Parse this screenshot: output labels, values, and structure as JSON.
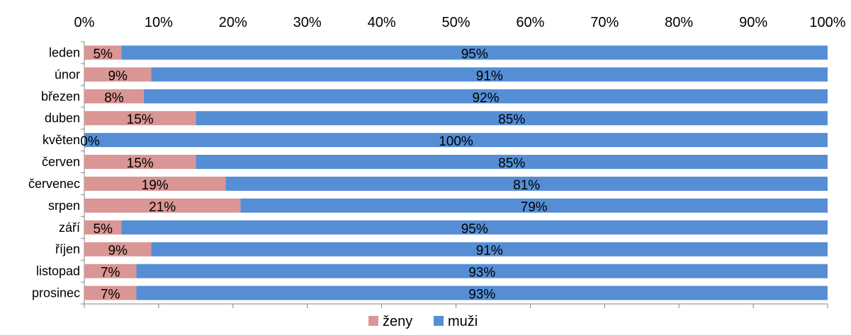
{
  "chart_data": {
    "type": "bar",
    "orientation": "horizontal",
    "stacked": "percent",
    "categories": [
      "leden",
      "únor",
      "březen",
      "duben",
      "květen",
      "červen",
      "červenec",
      "srpen",
      "září",
      "říjen",
      "listopad",
      "prosinec"
    ],
    "series": [
      {
        "name": "ženy",
        "color": "#d99694",
        "values": [
          5,
          9,
          8,
          15,
          0,
          15,
          19,
          21,
          5,
          9,
          7,
          7
        ]
      },
      {
        "name": "muži",
        "color": "#558ed5",
        "values": [
          95,
          91,
          92,
          85,
          100,
          85,
          81,
          79,
          95,
          91,
          93,
          93
        ]
      }
    ],
    "x_ticks": [
      "0%",
      "10%",
      "20%",
      "30%",
      "40%",
      "50%",
      "60%",
      "70%",
      "80%",
      "90%",
      "100%"
    ],
    "xlim": [
      0,
      100
    ],
    "axis_position": "top",
    "grid": false,
    "legend_position": "bottom"
  }
}
